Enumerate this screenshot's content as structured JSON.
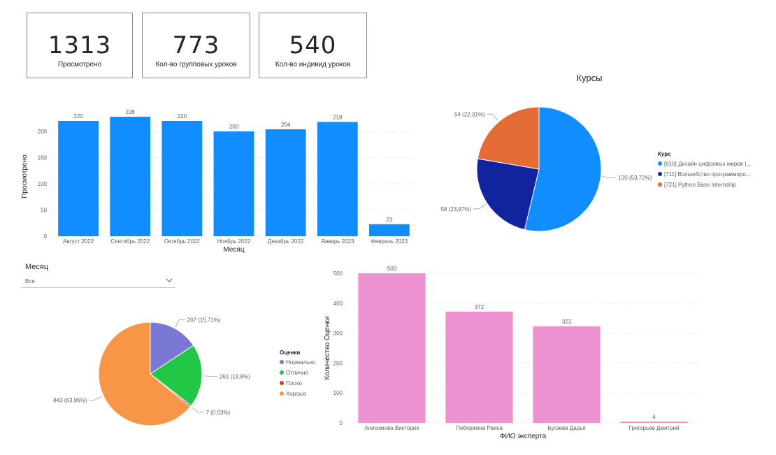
{
  "kpis": [
    {
      "value": "1313",
      "label": "Просмотрено"
    },
    {
      "value": "773",
      "label": "Кол-во групповых уроков"
    },
    {
      "value": "540",
      "label": "Кол-во индивид уроков"
    }
  ],
  "slicer": {
    "title": "Месяц",
    "selected": "Все"
  },
  "chart_data": [
    {
      "type": "bar",
      "title": "",
      "xlabel": "Месяц",
      "ylabel": "Просмотрено",
      "categories": [
        "Август 2022",
        "Сентябрь 2022",
        "Октябрь 2022",
        "Ноябрь 2022",
        "Декабрь 2022",
        "Январь 2023",
        "Февраль 2023"
      ],
      "values": [
        220,
        228,
        220,
        200,
        204,
        218,
        23
      ],
      "ylim": [
        0,
        228
      ],
      "yticks": [
        0,
        50,
        100,
        150,
        200
      ],
      "grid": true,
      "color": "#118dff"
    },
    {
      "type": "pie",
      "title": "Курсы",
      "legend_title": "Курс",
      "legend_position": "right",
      "slices": [
        {
          "name": "[610] Дизайн цифровых миров |...",
          "value": 130,
          "label": "130 (53,72%)",
          "color": "#118dff"
        },
        {
          "name": "[711] Волшебство программиро...",
          "value": 58,
          "label": "58 (23,97%)",
          "color": "#12239e"
        },
        {
          "name": "[721] Python Base Internship",
          "value": 54,
          "label": "54 (22,31%)",
          "color": "#e66c37"
        }
      ]
    },
    {
      "type": "pie",
      "title": "",
      "legend_title": "Оценки",
      "legend_position": "right",
      "slices": [
        {
          "name": "Нормально",
          "value": 207,
          "label": "207 (15,71%)",
          "color": "#7b78d5"
        },
        {
          "name": "Отлично",
          "value": 261,
          "label": "261 (19,8%)",
          "color": "#22c746"
        },
        {
          "name": "Плохо",
          "value": 7,
          "label": "7 (0,53%)",
          "color": "#d9363e"
        },
        {
          "name": "Хорошо",
          "value": 843,
          "label": "843 (63,96%)",
          "color": "#f79646"
        }
      ]
    },
    {
      "type": "bar",
      "title": "",
      "xlabel": "ФИО эксперта",
      "ylabel": "Количество Оценки",
      "categories": [
        "Анисимова Виктория",
        "Побяржина Раиса",
        "Бугаева Дарья",
        "Григорьев Дмитрий"
      ],
      "values": [
        500,
        372,
        323,
        4
      ],
      "ylim": [
        0,
        500
      ],
      "yticks": [
        0,
        100,
        200,
        300,
        400,
        500
      ],
      "grid": true,
      "color": "#ee91d1"
    }
  ]
}
